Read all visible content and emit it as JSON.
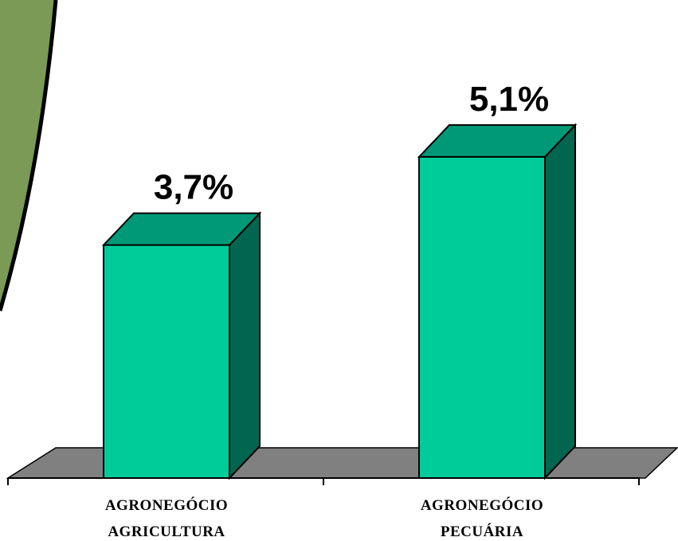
{
  "chart_data": {
    "type": "bar",
    "categories": [
      [
        "AGRONEGÓCIO",
        "AGRICULTURA"
      ],
      [
        "AGRONEGÓCIO",
        "PECUÁRIA"
      ]
    ],
    "values": [
      3.7,
      5.1
    ],
    "data_labels": [
      "3,7%",
      "5,1%"
    ],
    "ylim": [
      0,
      6.2
    ],
    "grid": false,
    "legend": "none",
    "style": "3d-column"
  },
  "colors": {
    "bar_front": "#00cc99",
    "bar_top": "#009977",
    "bar_side": "#006650",
    "floor": "#808080",
    "background_shape": "#7a9a55",
    "outline": "#000000"
  }
}
